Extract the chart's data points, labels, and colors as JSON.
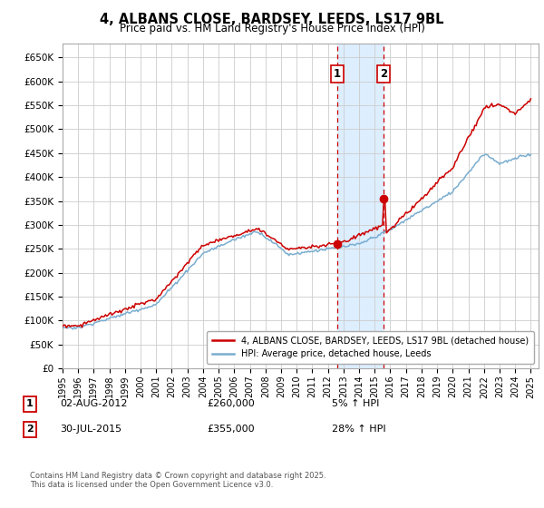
{
  "title": "4, ALBANS CLOSE, BARDSEY, LEEDS, LS17 9BL",
  "subtitle": "Price paid vs. HM Land Registry's House Price Index (HPI)",
  "ylabel_ticks": [
    "£0",
    "£50K",
    "£100K",
    "£150K",
    "£200K",
    "£250K",
    "£300K",
    "£350K",
    "£400K",
    "£450K",
    "£500K",
    "£550K",
    "£600K",
    "£650K"
  ],
  "ylim": [
    0,
    680000
  ],
  "ytick_vals": [
    0,
    50000,
    100000,
    150000,
    200000,
    250000,
    300000,
    350000,
    400000,
    450000,
    500000,
    550000,
    600000,
    650000
  ],
  "year_start": 1995,
  "year_end": 2025,
  "sale1_year": 2012.58,
  "sale2_year": 2015.58,
  "sale1_price": 260000,
  "sale2_price": 355000,
  "sale1_label": "1",
  "sale2_label": "2",
  "sale1_date": "02-AUG-2012",
  "sale2_date": "30-JUL-2015",
  "sale1_hpi": "5% ↑ HPI",
  "sale2_hpi": "28% ↑ HPI",
  "line_color_red": "#cc0000",
  "line_color_blue": "#7aadcf",
  "legend_line1": "4, ALBANS CLOSE, BARDSEY, LEEDS, LS17 9BL (detached house)",
  "legend_line2": "HPI: Average price, detached house, Leeds",
  "footer": "Contains HM Land Registry data © Crown copyright and database right 2025.\nThis data is licensed under the Open Government Licence v3.0.",
  "bg_color": "#ffffff",
  "grid_color": "#cccccc",
  "highlight_color": "#ddeeff"
}
